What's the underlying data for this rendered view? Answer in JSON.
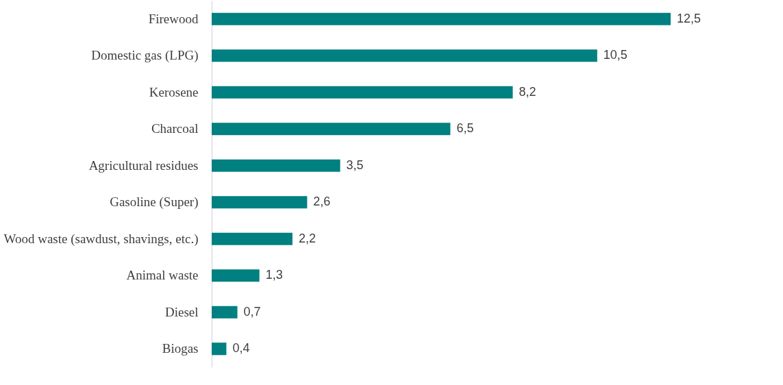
{
  "chart_data": {
    "type": "bar",
    "orientation": "horizontal",
    "categories": [
      "Firewood",
      "Domestic gas (LPG)",
      "Kerosene",
      "Charcoal",
      "Agricultural residues",
      "Gasoline (Super)",
      "Wood waste (sawdust, shavings, etc.)",
      "Animal waste",
      "Diesel",
      "Biogas"
    ],
    "values": [
      12.5,
      10.5,
      8.2,
      6.5,
      3.5,
      2.6,
      2.2,
      1.3,
      0.7,
      0.4
    ],
    "value_labels": [
      "12,5",
      "10,5",
      "8,2",
      "6,5",
      "3,5",
      "2,6",
      "2,2",
      "1,3",
      "0,7",
      "0,4"
    ],
    "color": "#008080"
  }
}
